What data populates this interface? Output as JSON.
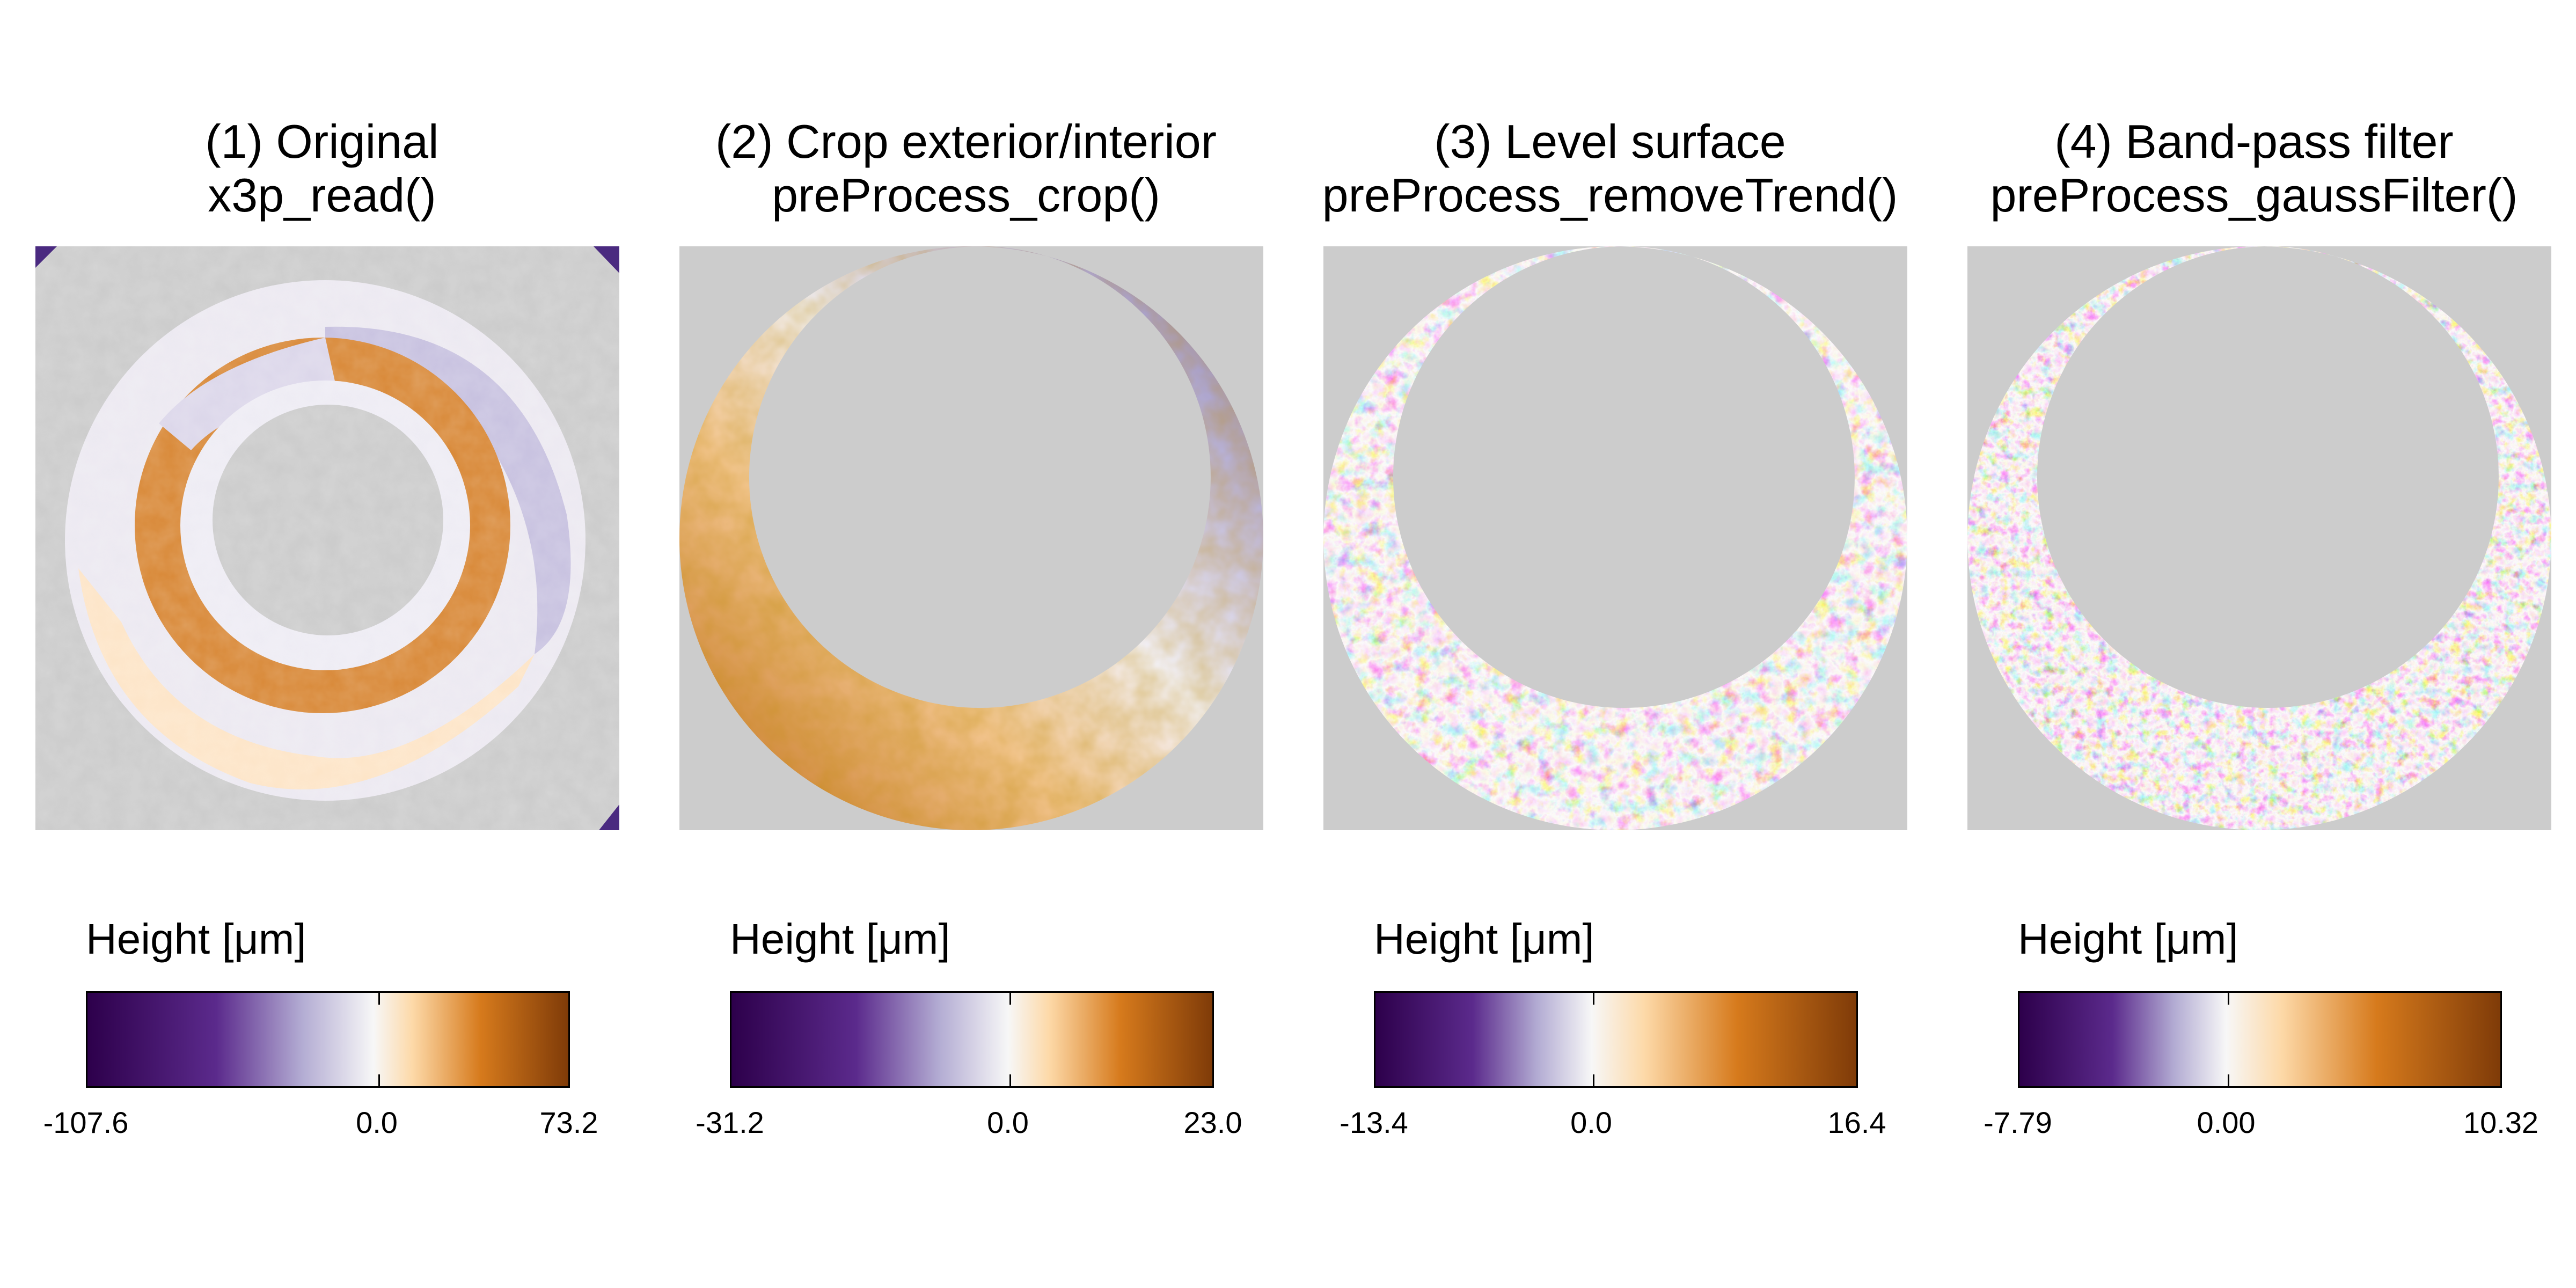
{
  "chart_data": [
    {
      "type": "heatmap",
      "title": "(1) Original",
      "subtitle": "x3p_read()",
      "legend_title": "Height [μm]",
      "colorbar": {
        "min": -107.6,
        "mid": 0.0,
        "max": 73.2,
        "labels": [
          "-107.6",
          "0.0",
          "73.2"
        ]
      },
      "colors": {
        "low": "#2d004b",
        "mid": "#f7f7f7",
        "high": "#7f3b08",
        "missing": "#cccccc"
      }
    },
    {
      "type": "heatmap",
      "title": "(2) Crop exterior/interior",
      "subtitle": "preProcess_crop()",
      "legend_title": "Height [μm]",
      "colorbar": {
        "min": -31.2,
        "mid": 0.0,
        "max": 23.0,
        "labels": [
          "-31.2",
          "0.0",
          "23.0"
        ]
      },
      "colors": {
        "low": "#2d004b",
        "mid": "#f7f7f7",
        "high": "#7f3b08",
        "missing": "#cccccc"
      }
    },
    {
      "type": "heatmap",
      "title": "(3) Level surface",
      "subtitle": "preProcess_removeTrend()",
      "legend_title": "Height [μm]",
      "colorbar": {
        "min": -13.4,
        "mid": 0.0,
        "max": 16.4,
        "labels": [
          "-13.4",
          "0.0",
          "16.4"
        ]
      },
      "colors": {
        "low": "#2d004b",
        "mid": "#f7f7f7",
        "high": "#7f3b08",
        "missing": "#cccccc"
      }
    },
    {
      "type": "heatmap",
      "title": "(4) Band-pass filter",
      "subtitle": "preProcess_gaussFilter()",
      "legend_title": "Height [μm]",
      "colorbar": {
        "min": -7.79,
        "mid": 0.0,
        "max": 10.32,
        "labels": [
          "-7.79",
          "0.00",
          "10.32"
        ]
      },
      "colors": {
        "low": "#2d004b",
        "mid": "#f7f7f7",
        "high": "#7f3b08",
        "missing": "#cccccc"
      }
    }
  ]
}
